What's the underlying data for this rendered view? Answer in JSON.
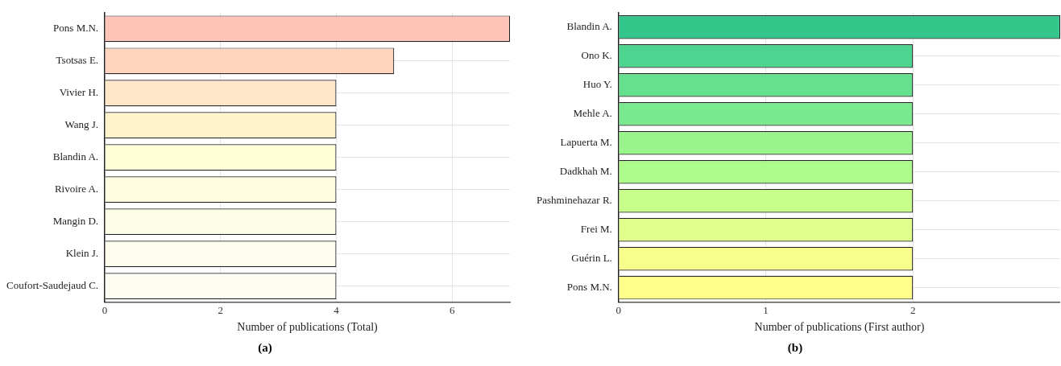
{
  "chart_data": [
    {
      "type": "bar",
      "orientation": "horizontal",
      "xlabel": "Number of publications (Total)",
      "annotations": [
        "(a)"
      ],
      "categories": [
        "Pons M.N.",
        "Tsotsas E.",
        "Vivier H.",
        "Wang J.",
        "Blandin A.",
        "Rivoire A.",
        "Mangin D.",
        "Klein J.",
        "Coufort-Saudejaud C."
      ],
      "values": [
        7,
        5,
        4,
        4,
        4,
        4,
        4,
        4,
        4
      ],
      "colors": [
        "#ffc4b8",
        "#ffd5c0",
        "#ffe6c8",
        "#fff3cc",
        "#ffffd8",
        "#fefddf",
        "#fefde6",
        "#fefdee",
        "#fefdf4"
      ],
      "xlim": [
        0,
        7
      ],
      "xticks": [
        0,
        2,
        4,
        6
      ],
      "grid": true,
      "legend": false
    },
    {
      "type": "bar",
      "orientation": "horizontal",
      "xlabel": "Number of publications (First author)",
      "annotations": [
        "(b)"
      ],
      "categories": [
        "Blandin A.",
        "Ono K.",
        "Huo Y.",
        "Mehle A.",
        "Lapuerta M.",
        "Dadkhah M.",
        "Pashminehazar R.",
        "Frei M.",
        "Guérin L.",
        "Pons M.N."
      ],
      "values": [
        3,
        2,
        2,
        2,
        2,
        2,
        2,
        2,
        2,
        2
      ],
      "colors": [
        "#33c68a",
        "#4dd48e",
        "#64e08f",
        "#7bea8f",
        "#98f48b",
        "#adfb8b",
        "#c8fe8a",
        "#e0fe8a",
        "#f7fe8b",
        "#fffe8a"
      ],
      "xlim": [
        0,
        3
      ],
      "xticks": [
        0,
        1,
        2
      ],
      "grid": true,
      "legend": false
    }
  ]
}
